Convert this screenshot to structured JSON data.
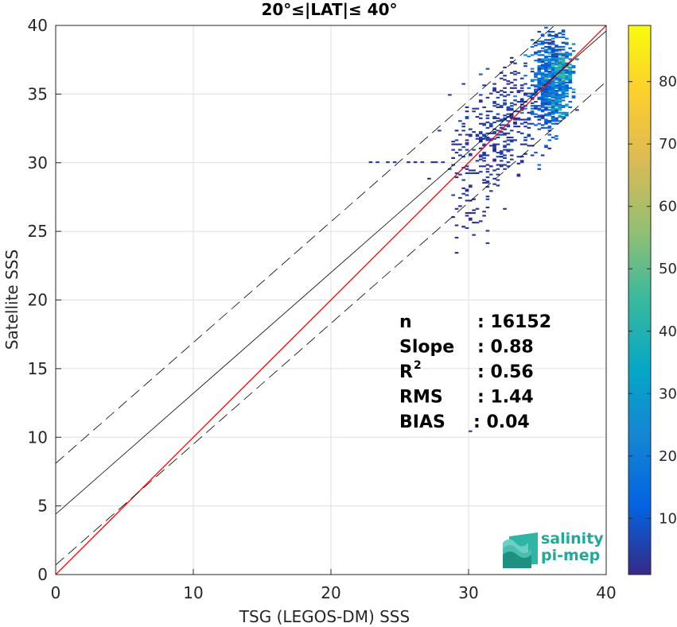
{
  "chart_data": {
    "type": "heatmap",
    "title": "20°≤|LAT|≤ 40°",
    "xlabel": "TSG (LEGOS-DM) SSS",
    "ylabel": "Satellite SSS",
    "xlim": [
      0,
      40
    ],
    "ylim": [
      0,
      40
    ],
    "xticks": [
      "0",
      "10",
      "20",
      "30",
      "40"
    ],
    "yticks": [
      "0",
      "5",
      "10",
      "15",
      "20",
      "25",
      "30",
      "35",
      "40"
    ],
    "grid": true,
    "colorbar": {
      "range": [
        1,
        89
      ],
      "ticks": [
        "10",
        "20",
        "30",
        "40",
        "50",
        "60",
        "70",
        "80"
      ],
      "tick_values": [
        10,
        20,
        30,
        40,
        50,
        60,
        70,
        80
      ],
      "colormap": "parula"
    },
    "lines": [
      {
        "kind": "one-to-one",
        "color": "#ff0000",
        "points": [
          [
            0,
            0
          ],
          [
            40,
            40
          ]
        ]
      },
      {
        "kind": "regression-fit",
        "color": "#000000",
        "slope": 0.88,
        "intercept": 4.4
      },
      {
        "kind": "fit-upper-bound",
        "color": "#000000",
        "dashed": true,
        "slope": 0.88,
        "intercept": 8.1
      },
      {
        "kind": "fit-lower-bound",
        "color": "#000000",
        "dashed": true,
        "slope": 0.88,
        "intercept": 0.7
      }
    ],
    "density_clusters": [
      {
        "x": 36.2,
        "y": 36.0,
        "sx": 0.7,
        "sy": 1.3,
        "n": 700,
        "cmin": 8,
        "cmax": 28
      },
      {
        "x": 36.6,
        "y": 36.8,
        "sx": 0.4,
        "sy": 0.6,
        "n": 90,
        "cmin": 25,
        "cmax": 55
      },
      {
        "x": 35.6,
        "y": 33.6,
        "sx": 0.5,
        "sy": 1.0,
        "n": 90,
        "cmin": 5,
        "cmax": 18
      },
      {
        "x": 36.0,
        "y": 38.6,
        "sx": 0.5,
        "sy": 0.8,
        "n": 60,
        "cmin": 3,
        "cmax": 12
      },
      {
        "x": 33.0,
        "y": 33.0,
        "sx": 1.4,
        "sy": 1.4,
        "n": 170,
        "cmin": 1,
        "cmax": 9
      },
      {
        "x": 31.2,
        "y": 31.0,
        "sx": 1.5,
        "sy": 1.8,
        "n": 170,
        "cmin": 1,
        "cmax": 7
      },
      {
        "x": 30.5,
        "y": 27.5,
        "sx": 0.9,
        "sy": 2.0,
        "n": 50,
        "cmin": 1,
        "cmax": 4
      },
      {
        "x": 33.6,
        "y": 35.5,
        "sx": 1.0,
        "sy": 1.0,
        "n": 40,
        "cmin": 1,
        "cmax": 5
      },
      {
        "x": 36.5,
        "y": 34.2,
        "sx": 0.3,
        "sy": 0.5,
        "n": 40,
        "cmin": 15,
        "cmax": 45
      }
    ],
    "scatter_cells": [
      [
        28.0,
        30.0
      ],
      [
        27.3,
        30.0
      ],
      [
        26.5,
        30.0
      ],
      [
        25.5,
        30.0
      ],
      [
        24.5,
        30.0
      ],
      [
        23.4,
        30.0
      ],
      [
        22.8,
        30.0
      ],
      [
        27.6,
        30.0
      ],
      [
        26.0,
        30.0
      ],
      [
        24.0,
        30.0
      ],
      [
        30.1,
        10.4
      ],
      [
        31.4,
        24.1
      ],
      [
        30.6,
        25.6
      ],
      [
        30.4,
        26.4
      ],
      [
        29.8,
        33.8
      ],
      [
        29.0,
        32.4
      ],
      [
        28.8,
        31.5
      ],
      [
        32.0,
        28.3
      ],
      [
        29.4,
        32.0
      ],
      [
        30.0,
        29.2
      ],
      [
        35.2,
        29.5
      ],
      [
        34.6,
        30.5
      ]
    ],
    "stats": [
      {
        "label": "n",
        "value": ": 16152"
      },
      {
        "label": "Slope",
        "value": ": 0.88"
      },
      {
        "label": "R",
        "sup": "2",
        "value": ": 0.56"
      },
      {
        "label": "RMS",
        "value": ": 1.44"
      },
      {
        "label": "BIAS",
        "value": ": 0.04"
      }
    ]
  },
  "logo": {
    "line1": "salinity",
    "line2": "pi-mep",
    "color": "#1fa99a"
  }
}
